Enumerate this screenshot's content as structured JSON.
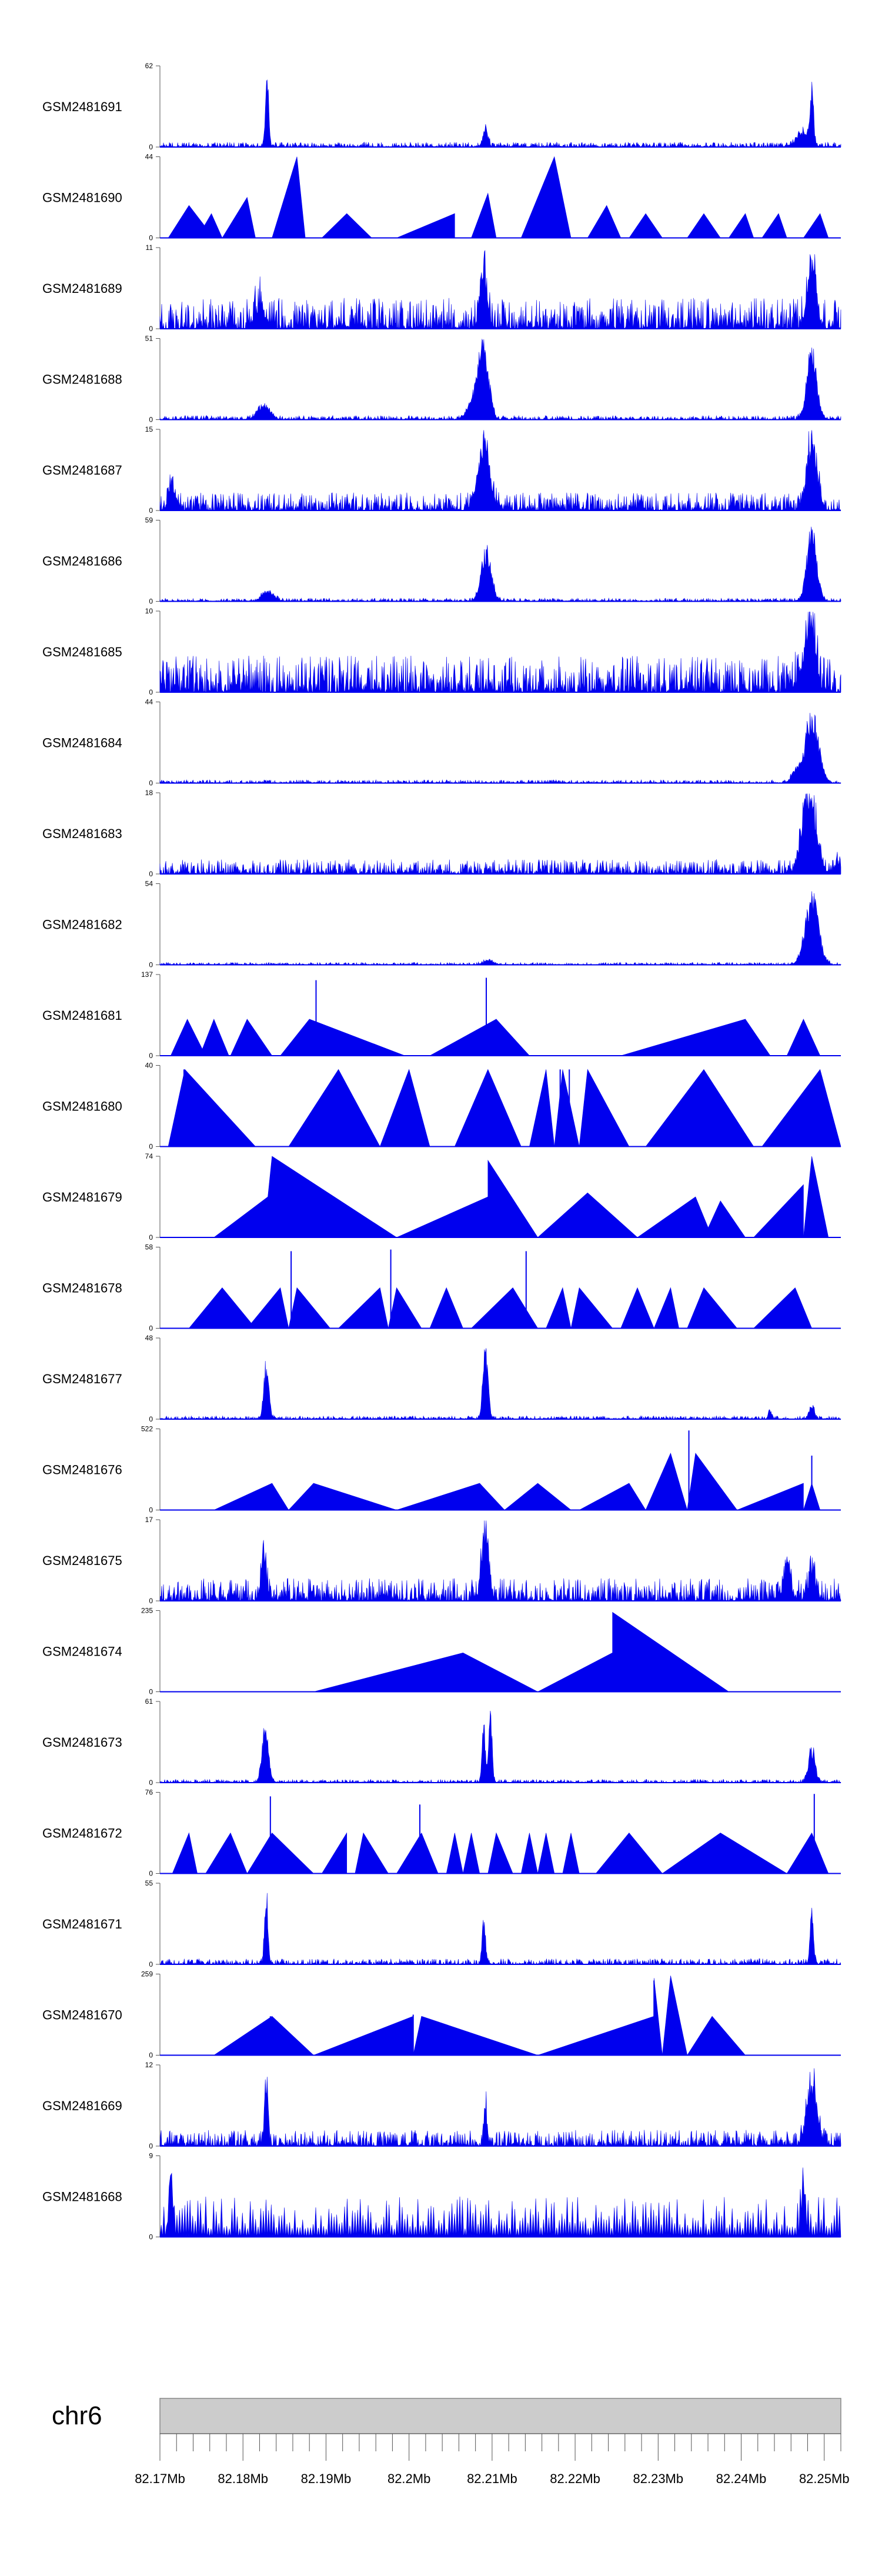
{
  "chart_data": {
    "type": "area",
    "title": "",
    "chromosome": "chr6",
    "x_range": [
      82.17,
      82.252
    ],
    "x_unit": "Mb",
    "x_ticks": [
      82.17,
      82.18,
      82.19,
      82.2,
      82.21,
      82.22,
      82.23,
      82.24,
      82.25
    ],
    "x_tick_labels": [
      "82.17Mb",
      "82.18Mb",
      "82.19Mb",
      "82.2Mb",
      "82.21Mb",
      "82.22Mb",
      "82.23Mb",
      "82.24Mb",
      "82.25Mb"
    ],
    "x_minor_step": 0.002,
    "tracks": [
      {
        "name": "GSM2481691",
        "ymax": 62,
        "style": "spiky",
        "noise": 0.06,
        "peaks": [
          [
            82.1829,
            1.0,
            0.0002
          ],
          [
            82.2092,
            0.25,
            0.0003
          ],
          [
            82.2485,
            0.7,
            0.0002
          ],
          [
            82.2475,
            0.2,
            0.0008
          ]
        ]
      },
      {
        "name": "GSM2481690",
        "ymax": 44,
        "style": "triangles",
        "tri": [
          [
            82.171,
            82.1735,
            82.1765,
            0.4
          ],
          [
            82.1745,
            82.1762,
            82.1775,
            0.3
          ],
          [
            82.1775,
            82.1805,
            82.1815,
            0.5
          ],
          [
            82.1835,
            82.1865,
            82.1875,
            1.0
          ],
          [
            82.1895,
            82.1925,
            82.1955,
            0.3
          ],
          [
            82.1985,
            82.2055,
            82.2055,
            0.3
          ],
          [
            82.2075,
            82.2095,
            82.2105,
            0.55
          ],
          [
            82.2135,
            82.2175,
            82.2195,
            1.0
          ],
          [
            82.2215,
            82.2238,
            82.2255,
            0.4
          ],
          [
            82.2265,
            82.2285,
            82.2305,
            0.3
          ],
          [
            82.2335,
            82.2355,
            82.2375,
            0.3
          ],
          [
            82.2385,
            82.2405,
            82.2415,
            0.3
          ],
          [
            82.2425,
            82.2445,
            82.2455,
            0.3
          ],
          [
            82.2475,
            82.2495,
            82.2505,
            0.3
          ]
        ]
      },
      {
        "name": "GSM2481689",
        "ymax": 11,
        "style": "spiky",
        "noise": 0.38,
        "peaks": [
          [
            82.209,
            0.9,
            0.0004
          ],
          [
            82.2485,
            0.9,
            0.0005
          ],
          [
            82.182,
            0.3,
            0.0006
          ]
        ]
      },
      {
        "name": "GSM2481688",
        "ymax": 51,
        "style": "spiky",
        "noise": 0.05,
        "peaks": [
          [
            82.1825,
            0.22,
            0.0007
          ],
          [
            82.209,
            0.95,
            0.0006
          ],
          [
            82.2485,
            0.95,
            0.0006
          ],
          [
            82.208,
            0.3,
            0.0008
          ]
        ]
      },
      {
        "name": "GSM2481687",
        "ymax": 15,
        "style": "spiky",
        "noise": 0.22,
        "peaks": [
          [
            82.209,
            0.95,
            0.0007
          ],
          [
            82.2485,
            0.95,
            0.0006
          ],
          [
            82.1715,
            0.4,
            0.0004
          ]
        ]
      },
      {
        "name": "GSM2481686",
        "ymax": 59,
        "style": "spiky",
        "noise": 0.04,
        "peaks": [
          [
            82.183,
            0.14,
            0.0007
          ],
          [
            82.2093,
            0.7,
            0.0006
          ],
          [
            82.2485,
            0.95,
            0.0006
          ]
        ]
      },
      {
        "name": "GSM2481685",
        "ymax": 10,
        "style": "spiky",
        "noise": 0.45,
        "peaks": [
          [
            82.2485,
            0.9,
            0.0005
          ],
          [
            82.2475,
            0.4,
            0.0006
          ]
        ]
      },
      {
        "name": "GSM2481684",
        "ymax": 44,
        "style": "spiky",
        "noise": 0.04,
        "peaks": [
          [
            82.2485,
            0.95,
            0.0008
          ],
          [
            82.2465,
            0.15,
            0.0005
          ]
        ]
      },
      {
        "name": "GSM2481683",
        "ymax": 18,
        "style": "spiky",
        "noise": 0.18,
        "peaks": [
          [
            82.2485,
            0.95,
            0.0007
          ],
          [
            82.2475,
            0.5,
            0.0006
          ],
          [
            82.2515,
            0.15,
            0.0003
          ]
        ]
      },
      {
        "name": "GSM2481682",
        "ymax": 54,
        "style": "spiky",
        "noise": 0.03,
        "peaks": [
          [
            82.2485,
            0.95,
            0.0008
          ],
          [
            82.2095,
            0.05,
            0.0006
          ]
        ]
      },
      {
        "name": "GSM2481681",
        "ymax": 137,
        "style": "triangles",
        "tri": [
          [
            82.1713,
            82.1733,
            82.1755,
            0.45
          ],
          [
            82.1748,
            82.1765,
            82.1783,
            0.45
          ],
          [
            82.1785,
            82.1805,
            82.1835,
            0.45
          ],
          [
            82.1845,
            82.188,
            82.1995,
            0.45
          ],
          [
            82.2025,
            82.2105,
            82.2105,
            0.45
          ],
          [
            82.2095,
            82.2105,
            82.2145,
            0.45
          ],
          [
            82.2155,
            82.2255,
            82.2255,
            0.0
          ],
          [
            82.2255,
            82.2405,
            82.2435,
            0.45
          ],
          [
            82.2455,
            82.2475,
            82.2495,
            0.45
          ]
        ],
        "spikes": [
          [
            82.1888,
            0.93
          ],
          [
            82.2093,
            0.96
          ],
          [
            82.2475,
            0.3
          ]
        ]
      },
      {
        "name": "GSM2481680",
        "ymax": 40,
        "style": "triangles",
        "tri": [
          [
            82.171,
            82.173,
            82.1815,
            0.95
          ],
          [
            82.1855,
            82.1915,
            82.1965,
            0.95
          ],
          [
            82.1965,
            82.2,
            82.2025,
            0.95
          ],
          [
            82.2055,
            82.2095,
            82.2135,
            0.95
          ],
          [
            82.2145,
            82.2165,
            82.2175,
            0.95
          ],
          [
            82.2175,
            82.2185,
            82.2205,
            0.95
          ],
          [
            82.2205,
            82.2215,
            82.2265,
            0.95
          ],
          [
            82.2285,
            82.2355,
            82.2415,
            0.95
          ],
          [
            82.2425,
            82.2495,
            82.252,
            0.95
          ]
        ],
        "spikes": [
          [
            82.1729,
            0.95
          ],
          [
            82.2182,
            0.95
          ],
          [
            82.2193,
            0.95
          ]
        ]
      },
      {
        "name": "GSM2481679",
        "ymax": 74,
        "style": "triangles",
        "tri": [
          [
            82.1765,
            82.183,
            82.1985,
            0.5
          ],
          [
            82.1825,
            82.1835,
            82.1985,
            1.0
          ],
          [
            82.1985,
            82.2095,
            82.2095,
            0.5
          ],
          [
            82.2095,
            82.2095,
            82.2155,
            0.95
          ],
          [
            82.2155,
            82.2215,
            82.2275,
            0.55
          ],
          [
            82.2275,
            82.2345,
            82.2365,
            0.5
          ],
          [
            82.2355,
            82.2375,
            82.2405,
            0.45
          ],
          [
            82.2415,
            82.2475,
            82.2475,
            0.65
          ],
          [
            82.2475,
            82.2485,
            82.2505,
            1.0
          ]
        ]
      },
      {
        "name": "GSM2481678",
        "ymax": 58,
        "style": "triangles",
        "tri": [
          [
            82.1735,
            82.1775,
            82.1815,
            0.5
          ],
          [
            82.1805,
            82.1845,
            82.1855,
            0.5
          ],
          [
            82.1855,
            82.1865,
            82.1905,
            0.5
          ],
          [
            82.1915,
            82.1965,
            82.1975,
            0.5
          ],
          [
            82.1975,
            82.1985,
            82.2015,
            0.5
          ],
          [
            82.2025,
            82.2045,
            82.2065,
            0.5
          ],
          [
            82.2075,
            82.2125,
            82.2155,
            0.5
          ],
          [
            82.2165,
            82.2185,
            82.2195,
            0.5
          ],
          [
            82.2195,
            82.2205,
            82.2245,
            0.5
          ],
          [
            82.2255,
            82.2275,
            82.2295,
            0.5
          ],
          [
            82.2295,
            82.2315,
            82.2325,
            0.5
          ],
          [
            82.2335,
            82.2355,
            82.2395,
            0.5
          ],
          [
            82.2415,
            82.2465,
            82.2485,
            0.5
          ]
        ],
        "spikes": [
          [
            82.1858,
            0.95
          ],
          [
            82.1978,
            0.97
          ],
          [
            82.2141,
            0.95
          ]
        ]
      },
      {
        "name": "GSM2481677",
        "ymax": 48,
        "style": "spiky",
        "noise": 0.04,
        "peaks": [
          [
            82.1828,
            0.75,
            0.0003
          ],
          [
            82.2092,
            0.98,
            0.0003
          ],
          [
            82.2485,
            0.2,
            0.0003
          ],
          [
            82.2435,
            0.12,
            0.0002
          ]
        ]
      },
      {
        "name": "GSM2481676",
        "ymax": 522,
        "style": "triangles",
        "tri": [
          [
            82.1765,
            82.1835,
            82.1855,
            0.33
          ],
          [
            82.1855,
            82.1885,
            82.1985,
            0.33
          ],
          [
            82.1985,
            82.2085,
            82.2115,
            0.33
          ],
          [
            82.2115,
            82.2155,
            82.2195,
            0.33
          ],
          [
            82.2205,
            82.2265,
            82.2285,
            0.33
          ],
          [
            82.2285,
            82.2315,
            82.2335,
            0.7
          ],
          [
            82.2335,
            82.2345,
            82.2395,
            0.7
          ],
          [
            82.2395,
            82.2475,
            82.2475,
            0.33
          ],
          [
            82.2475,
            82.2485,
            82.2495,
            0.33
          ]
        ],
        "spikes": [
          [
            82.2337,
            0.98
          ],
          [
            82.2485,
            0.67
          ]
        ]
      },
      {
        "name": "GSM2481675",
        "ymax": 17,
        "style": "spiky",
        "noise": 0.28,
        "peaks": [
          [
            82.2092,
            0.98,
            0.0004
          ],
          [
            82.1825,
            0.7,
            0.0003
          ],
          [
            82.2455,
            0.5,
            0.0004
          ],
          [
            82.2485,
            0.45,
            0.0004
          ]
        ]
      },
      {
        "name": "GSM2481674",
        "ymax": 235,
        "style": "triangles",
        "tri": [
          [
            82.1885,
            82.2065,
            82.2155,
            0.48
          ],
          [
            82.2155,
            82.2245,
            82.2245,
            0.48
          ],
          [
            82.2245,
            82.2245,
            82.2385,
            0.98
          ]
        ]
      },
      {
        "name": "GSM2481673",
        "ymax": 61,
        "style": "spiky",
        "noise": 0.04,
        "peaks": [
          [
            82.1827,
            0.75,
            0.0004
          ],
          [
            82.209,
            0.8,
            0.0002
          ],
          [
            82.2098,
            0.95,
            0.0002
          ],
          [
            82.2485,
            0.48,
            0.0004
          ]
        ]
      },
      {
        "name": "GSM2481672",
        "ymax": 76,
        "style": "triangles",
        "tri": [
          [
            82.1715,
            82.1735,
            82.1745,
            0.5
          ],
          [
            82.1755,
            82.1785,
            82.1805,
            0.5
          ],
          [
            82.1805,
            82.1835,
            82.1885,
            0.5
          ],
          [
            82.1895,
            82.1925,
            82.1925,
            0.5
          ],
          [
            82.1935,
            82.1945,
            82.1975,
            0.5
          ],
          [
            82.1985,
            82.2015,
            82.2035,
            0.5
          ],
          [
            82.2045,
            82.2055,
            82.2065,
            0.5
          ],
          [
            82.2065,
            82.2075,
            82.2085,
            0.5
          ],
          [
            82.2095,
            82.2105,
            82.2125,
            0.5
          ],
          [
            82.2135,
            82.2145,
            82.2155,
            0.5
          ],
          [
            82.2155,
            82.2165,
            82.2175,
            0.5
          ],
          [
            82.2185,
            82.2195,
            82.2205,
            0.5
          ],
          [
            82.2225,
            82.2265,
            82.2305,
            0.5
          ],
          [
            82.2305,
            82.2375,
            82.2455,
            0.5
          ],
          [
            82.2455,
            82.2485,
            82.2505,
            0.5
          ]
        ],
        "spikes": [
          [
            82.1833,
            0.95
          ],
          [
            82.2013,
            0.85
          ],
          [
            82.2488,
            0.98
          ]
        ]
      },
      {
        "name": "GSM2481671",
        "ymax": 55,
        "style": "spiky",
        "noise": 0.07,
        "peaks": [
          [
            82.1828,
            0.98,
            0.0002
          ],
          [
            82.209,
            0.65,
            0.0002
          ],
          [
            82.2485,
            0.8,
            0.0002
          ]
        ]
      },
      {
        "name": "GSM2481670",
        "ymax": 259,
        "style": "triangles",
        "tri": [
          [
            82.1765,
            82.1835,
            82.1885,
            0.48
          ],
          [
            82.1885,
            82.2005,
            82.2005,
            0.48
          ],
          [
            82.2005,
            82.2015,
            82.2155,
            0.48
          ],
          [
            82.2155,
            82.2295,
            82.2295,
            0.48
          ],
          [
            82.2295,
            82.2295,
            82.2305,
            0.95
          ],
          [
            82.2305,
            82.2315,
            82.2335,
            0.98
          ],
          [
            82.2335,
            82.2365,
            82.2405,
            0.48
          ]
        ],
        "spikes": [
          [
            82.1833,
            0.48
          ],
          [
            82.2005,
            0.5
          ],
          [
            82.2295,
            0.92
          ]
        ]
      },
      {
        "name": "GSM2481669",
        "ymax": 12,
        "style": "spiky",
        "noise": 0.2,
        "peaks": [
          [
            82.1828,
            0.98,
            0.0002
          ],
          [
            82.2485,
            0.95,
            0.0006
          ],
          [
            82.2092,
            0.55,
            0.0002
          ]
        ]
      },
      {
        "name": "GSM2481668",
        "ymax": 9,
        "style": "sawtooth",
        "noise": 0.5,
        "peaks": [
          [
            82.1713,
            0.95,
            0.0002
          ],
          [
            82.2475,
            0.95,
            0.0002
          ]
        ]
      }
    ]
  }
}
